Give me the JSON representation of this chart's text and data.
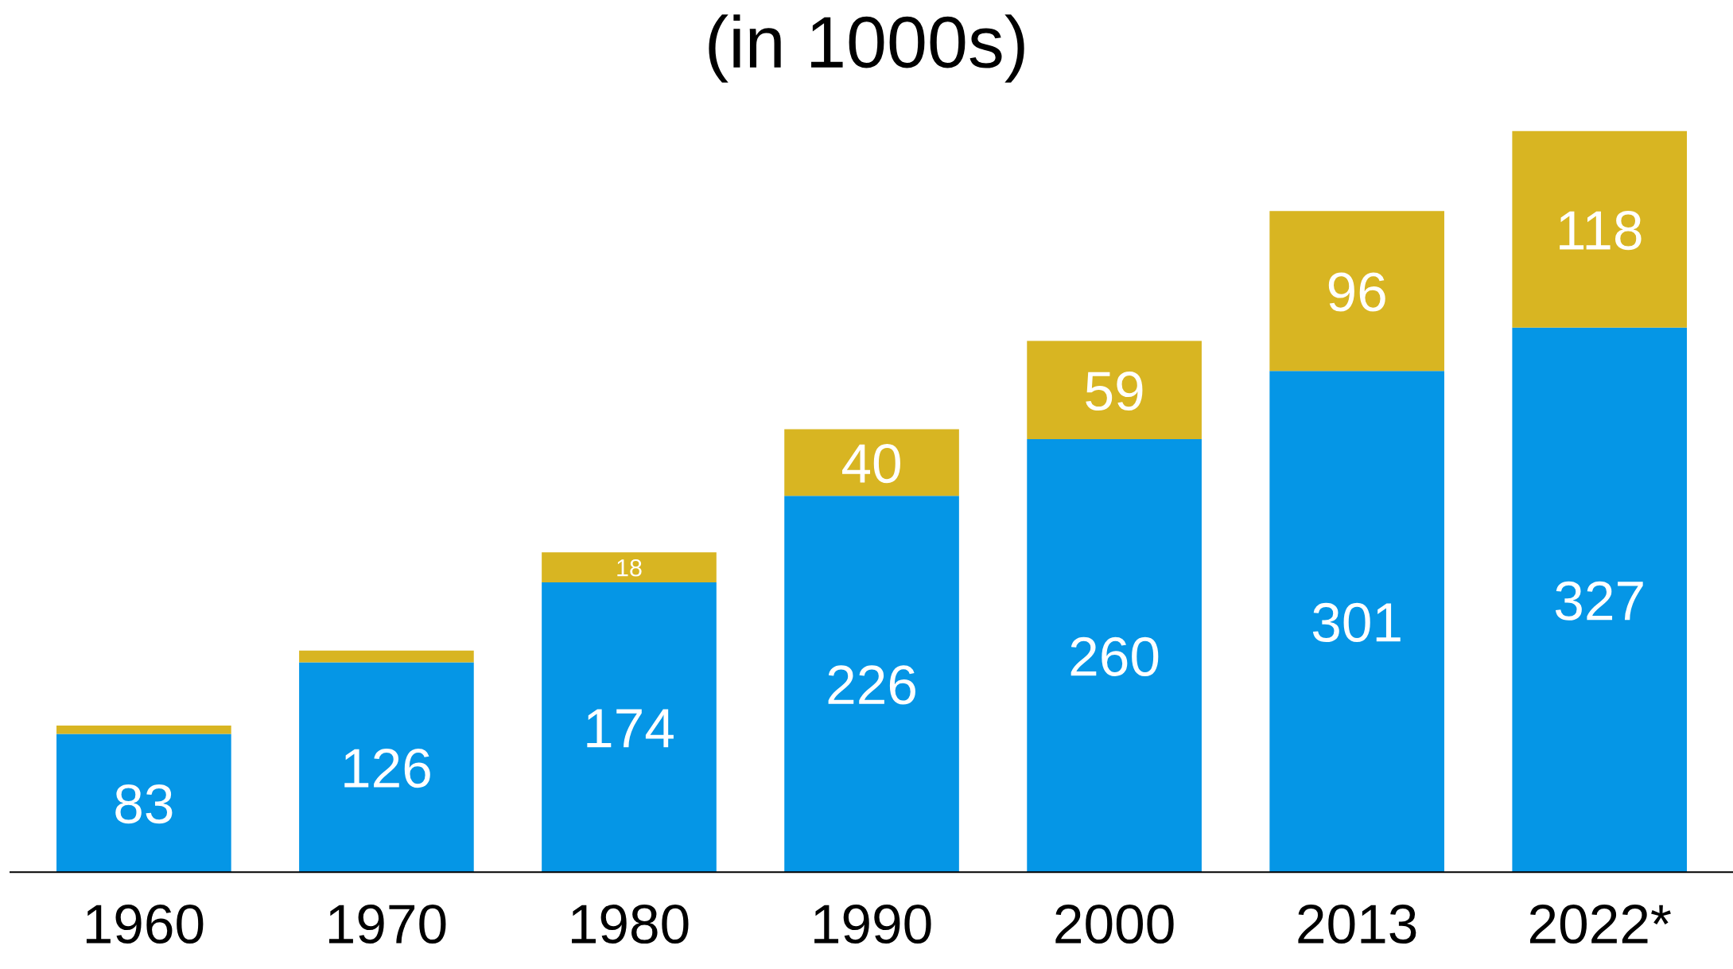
{
  "chart_data": {
    "type": "bar",
    "title": "(in 1000s)",
    "categories": [
      "1960",
      "1970",
      "1980",
      "1990",
      "2000",
      "2013",
      "2022*"
    ],
    "stacked": true,
    "series": [
      {
        "color": "#0596e6",
        "values": [
          83,
          126,
          174,
          226,
          260,
          301,
          327
        ],
        "value_labels": [
          "83",
          "126",
          "174",
          "226",
          "260",
          "301",
          "327"
        ]
      },
      {
        "color": "#d8b522",
        "values": [
          5,
          7,
          18,
          40,
          59,
          96,
          118
        ],
        "value_labels": [
          null,
          null,
          "18",
          "40",
          "59",
          "96",
          "118"
        ]
      }
    ]
  }
}
